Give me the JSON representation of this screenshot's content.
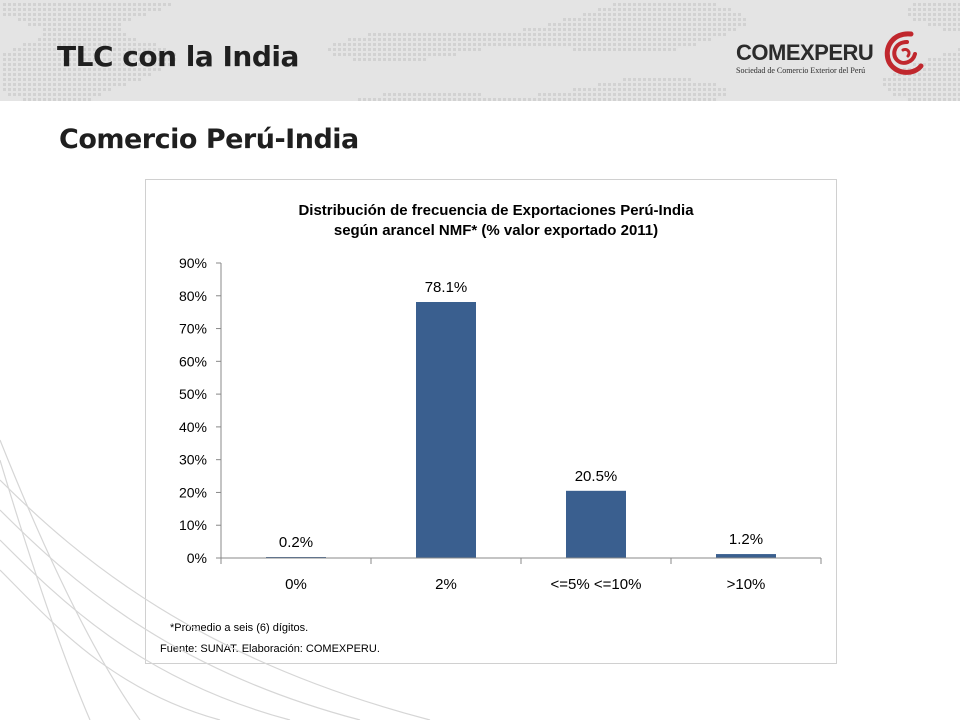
{
  "slide": {
    "title": "TLC con la India",
    "subtitle": "Comercio Perú-India"
  },
  "logo": {
    "name": "COMEXPERU",
    "tagline": "Sociedad de Comercio Exterior del Perú",
    "color": "#c0272d"
  },
  "chart_data": {
    "type": "bar",
    "title_lines": [
      "Distribución de frecuencia de Exportaciones  Perú-India",
      "según arancel NMF* (% valor exportado 2011)"
    ],
    "categories": [
      "0%",
      "2%",
      "<=5% <=10%",
      ">10%"
    ],
    "values": [
      0.2,
      78.1,
      20.5,
      1.2
    ],
    "data_labels": [
      "0.2%",
      "78.1%",
      "20.5%",
      "1.2%"
    ],
    "y_ticks": [
      "0%",
      "10%",
      "20%",
      "30%",
      "40%",
      "50%",
      "60%",
      "70%",
      "80%",
      "90%"
    ],
    "ylim": [
      0,
      90
    ],
    "grid": false,
    "legend": "none",
    "bar_color": "#3a5f8f",
    "footnote": "*Promedio a seis (6) dígitos.",
    "source": "Fuente: SUNAT. Elaboración: COMEXPERU."
  }
}
